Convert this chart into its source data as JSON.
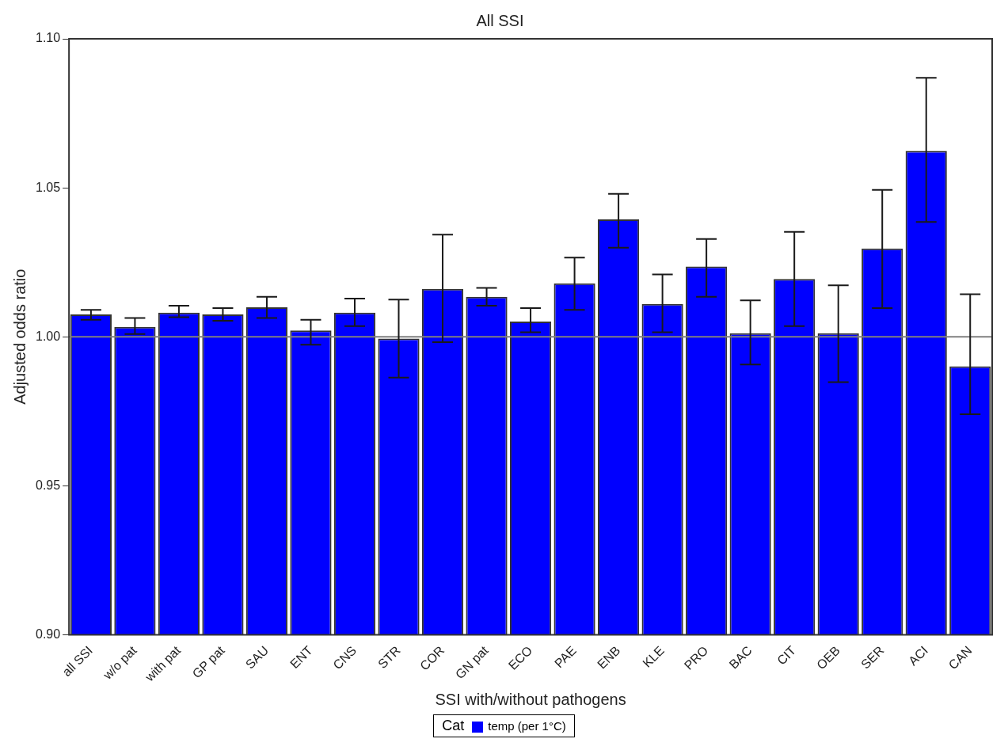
{
  "chart_data": {
    "type": "bar",
    "title": "All SSI",
    "xlabel": "SSI with/without pathogens",
    "ylabel": "Adjusted odds ratio",
    "legend_title": "Cat",
    "legend": "bottom",
    "categories": [
      "all SSI",
      "w/o pat",
      "with pat",
      "GP pat",
      "SAU",
      "ENT",
      "CNS",
      "STR",
      "COR",
      "GN pat",
      "ECO",
      "PAE",
      "ENB",
      "KLE",
      "PRO",
      "BAC",
      "CIT",
      "OEB",
      "SER",
      "ACI",
      "CAN"
    ],
    "series": [
      {
        "name": "temp (per 1°C)",
        "color": "#0000ff",
        "values": [
          1.0075,
          1.0033,
          1.0081,
          1.0075,
          1.0099,
          1.0021,
          1.0081,
          0.9994,
          1.0161,
          1.0134,
          1.0051,
          1.0179,
          1.0394,
          1.011,
          1.0236,
          1.0012,
          1.0194,
          1.0012,
          1.0296,
          1.0624,
          0.9901
        ],
        "errors": [
          [
            1.0057,
            1.009
          ],
          [
            1.0009,
            1.0063
          ],
          [
            1.0066,
            1.0104
          ],
          [
            1.0054,
            1.0096
          ],
          [
            1.0063,
            1.0134
          ],
          [
            0.9973,
            1.0057
          ],
          [
            1.0036,
            1.0128
          ],
          [
            0.9863,
            1.0125
          ],
          [
            0.9982,
            1.0343
          ],
          [
            1.0104,
            1.0164
          ],
          [
            1.0015,
            1.0096
          ],
          [
            1.009,
            1.0266
          ],
          [
            1.0299,
            1.048
          ],
          [
            1.0015,
            1.0209
          ],
          [
            1.0134,
            1.0328
          ],
          [
            0.9907,
            1.0122
          ],
          [
            1.0036,
            1.0352
          ],
          [
            0.9848,
            1.0173
          ],
          [
            1.0096,
            1.0493
          ],
          [
            1.0385,
            1.0869
          ],
          [
            0.974,
            1.0143
          ]
        ]
      }
    ],
    "ylim": [
      0.9,
      1.1
    ],
    "yticks": [
      {
        "value": 0.9,
        "label": "0.90"
      },
      {
        "value": 0.95,
        "label": "0.95"
      },
      {
        "value": 1.0,
        "label": "1.00"
      },
      {
        "value": 1.05,
        "label": "1.05"
      },
      {
        "value": 1.1,
        "label": "1.10"
      }
    ],
    "ref_lines": [
      {
        "axis": "y",
        "value": 1.0,
        "color": "#808080"
      }
    ]
  }
}
